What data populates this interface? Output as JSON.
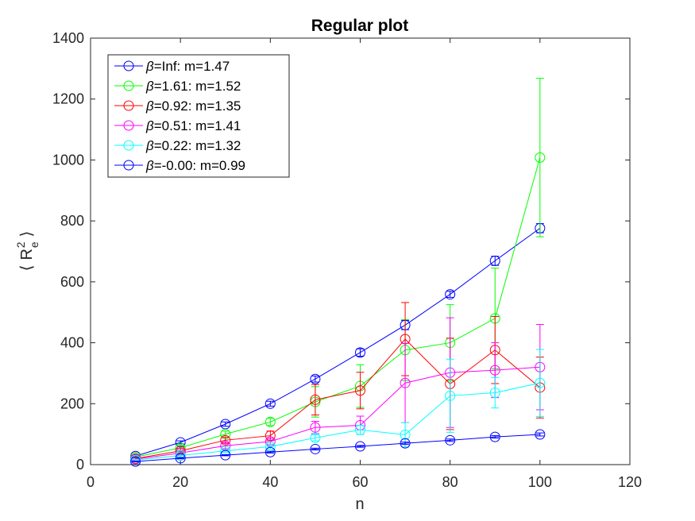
{
  "chart_data": {
    "type": "line",
    "title": "Regular plot",
    "xlabel": "n",
    "ylabel_parts": {
      "open": "⟨",
      "base": "R",
      "sub": "e",
      "sup": "2",
      "close": "⟩"
    },
    "xlim": [
      0,
      120
    ],
    "ylim": [
      0,
      1400
    ],
    "xticks": [
      0,
      20,
      40,
      60,
      80,
      100,
      120
    ],
    "yticks": [
      0,
      200,
      400,
      600,
      800,
      1000,
      1200,
      1400
    ],
    "grid": false,
    "legend_position": "top-left",
    "x": [
      10,
      20,
      30,
      40,
      50,
      60,
      70,
      80,
      90,
      100
    ],
    "series": [
      {
        "legend_beta": "β",
        "legend_rest": "=Inf: m=1.47",
        "color": "#0000ff",
        "values": [
          28,
          73,
          133,
          200,
          281,
          368,
          458,
          559,
          669,
          776
        ],
        "errors": [
          3,
          5,
          7,
          8,
          10,
          12,
          15,
          10,
          15,
          15
        ]
      },
      {
        "legend_beta": "β",
        "legend_rest": "=1.61: m=1.52",
        "color": "#00ff00",
        "values": [
          25,
          55,
          100,
          140,
          206,
          258,
          376,
          400,
          480,
          1008
        ],
        "errors": [
          3,
          8,
          10,
          12,
          50,
          70,
          100,
          125,
          165,
          260
        ]
      },
      {
        "legend_beta": "β",
        "legend_rest": "=0.92: m=1.35",
        "color": "#ff0000",
        "values": [
          20,
          45,
          80,
          95,
          213,
          243,
          412,
          265,
          376,
          253
        ],
        "errors": [
          3,
          8,
          10,
          15,
          50,
          60,
          120,
          150,
          110,
          100
        ]
      },
      {
        "legend_beta": "β",
        "legend_rest": "=0.51: m=1.41",
        "color": "#ff00ff",
        "values": [
          18,
          38,
          62,
          76,
          122,
          129,
          268,
          302,
          310,
          320
        ],
        "errors": [
          3,
          5,
          10,
          10,
          20,
          30,
          130,
          180,
          90,
          140
        ]
      },
      {
        "legend_beta": "β",
        "legend_rest": "=0.22: m=1.32",
        "color": "#00ffff",
        "values": [
          15,
          30,
          45,
          59,
          88,
          114,
          98,
          226,
          236,
          268
        ],
        "errors": [
          2,
          5,
          5,
          8,
          10,
          15,
          40,
          120,
          50,
          110
        ]
      },
      {
        "legend_beta": "β",
        "legend_rest": "=-0.00: m=0.99",
        "color": "#0000ff",
        "values": [
          10,
          21,
          31,
          41,
          51,
          60,
          70,
          80,
          91,
          99
        ],
        "errors": [
          1,
          2,
          2,
          3,
          3,
          3,
          4,
          4,
          4,
          5
        ]
      }
    ]
  }
}
